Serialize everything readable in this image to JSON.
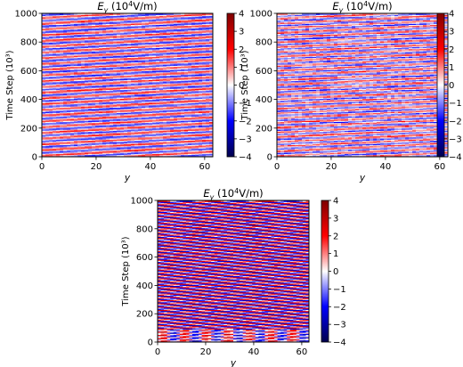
{
  "figure": {
    "colormap": [
      "#00004c",
      "#0000ff",
      "#ffffff",
      "#ff0000",
      "#7f0000"
    ]
  },
  "chart_data": [
    {
      "type": "heatmap",
      "title": "E_y (10^4V/m)",
      "title_parts": {
        "symbol": "E",
        "subscript": "y",
        "unit_prefix": " (10",
        "exponent": "4",
        "unit_suffix": "V/m)"
      },
      "xlabel": "y",
      "ylabel": "Time Step (10³)",
      "xlim": [
        0,
        63
      ],
      "ylim": [
        0,
        1000
      ],
      "xticks": [
        "0",
        "20",
        "40",
        "60"
      ],
      "xtick_values": [
        0,
        20,
        40,
        60
      ],
      "yticks": [
        "0",
        "200",
        "400",
        "600",
        "800",
        "1000"
      ],
      "ytick_values": [
        0,
        200,
        400,
        600,
        800,
        1000
      ],
      "colorbar": {
        "range": [
          -4,
          4
        ],
        "ticks": [
          "−4",
          "−3",
          "−2",
          "−1",
          "0",
          "1",
          "2",
          "3",
          "4"
        ],
        "tick_values": [
          -4,
          -3,
          -2,
          -1,
          0,
          1,
          2,
          3,
          4
        ]
      },
      "pattern": {
        "stripe_period_steps": 40,
        "stripe_drift_steps_per_y": 1.1,
        "amplitude": 1.6,
        "noise": 0.6,
        "seed": 11
      }
    },
    {
      "type": "heatmap",
      "title": "E_y (10^4V/m)",
      "title_parts": {
        "symbol": "E",
        "subscript": "y",
        "unit_prefix": " (10",
        "exponent": "4",
        "unit_suffix": "V/m)"
      },
      "xlabel": "y",
      "ylabel": "Time Step (10³)",
      "xlim": [
        0,
        63
      ],
      "ylim": [
        0,
        1000
      ],
      "xticks": [
        "0",
        "20",
        "40",
        "60"
      ],
      "xtick_values": [
        0,
        20,
        40,
        60
      ],
      "yticks": [
        "0",
        "200",
        "400",
        "600",
        "800",
        "1000"
      ],
      "ytick_values": [
        0,
        200,
        400,
        600,
        800,
        1000
      ],
      "colorbar": {
        "range": [
          -4,
          4
        ],
        "ticks": [
          "−4",
          "−3",
          "−2",
          "−1",
          "0",
          "1",
          "2",
          "3",
          "4"
        ],
        "tick_values": [
          -4,
          -3,
          -2,
          -1,
          0,
          1,
          2,
          3,
          4
        ]
      },
      "pattern": {
        "stripe_period_steps": 33,
        "stripe_drift_steps_per_y": 0.9,
        "amplitude": 1.4,
        "noise": 0.9,
        "seed": 23
      }
    },
    {
      "type": "heatmap",
      "title": "E_y (10^4V/m)",
      "title_parts": {
        "symbol": "E",
        "subscript": "y",
        "unit_prefix": " (10",
        "exponent": "4",
        "unit_suffix": "V/m)"
      },
      "xlabel": "y",
      "ylabel": "Time Step (10³)",
      "xlim": [
        0,
        63
      ],
      "ylim": [
        0,
        1000
      ],
      "xticks": [
        "0",
        "20",
        "40",
        "60"
      ],
      "xtick_values": [
        0,
        20,
        40,
        60
      ],
      "yticks": [
        "0",
        "200",
        "400",
        "600",
        "800",
        "1000"
      ],
      "ytick_values": [
        0,
        200,
        400,
        600,
        800,
        1000
      ],
      "colorbar": {
        "range": [
          -4,
          4
        ],
        "ticks": [
          "−4",
          "−3",
          "−2",
          "−1",
          "0",
          "1",
          "2",
          "3",
          "4"
        ],
        "tick_values": [
          -4,
          -3,
          -2,
          -1,
          0,
          1,
          2,
          3,
          4
        ]
      },
      "pattern": {
        "stripe_period_steps": 22,
        "stripe_drift_steps_per_y": 1.0,
        "amplitude": 2.6,
        "noise": 0.5,
        "seed": 37
      }
    }
  ]
}
